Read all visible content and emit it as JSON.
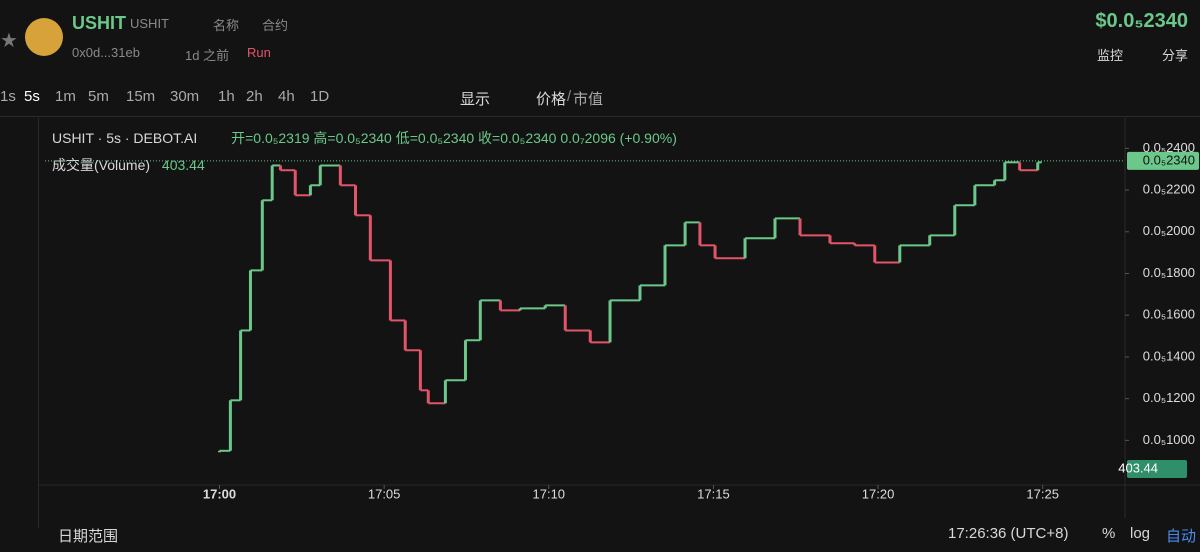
{
  "header": {
    "name": "USHIT",
    "symbol": "USHIT",
    "search_name": "名称",
    "search_contract": "合约",
    "address": "0x0d...31eb",
    "age": "1d 之前",
    "platform": "Run",
    "price": "$0.0₅2340",
    "watch": "监控",
    "share": "分享"
  },
  "toolbar": {
    "intervals": [
      "1s",
      "5s",
      "1m",
      "5m",
      "15m",
      "30m",
      "1h",
      "2h",
      "4h",
      "1D"
    ],
    "display": "显示",
    "price": "价格",
    "slash": "/",
    "market_cap": "市值"
  },
  "legend": {
    "title": "USHIT · 5s · DEBOT.AI",
    "open": "开=0.0₅2319",
    "high": "高=0.0₅2340",
    "low": "低=0.0₅2340",
    "close": "收=0.0₅2340",
    "change": "0.0₇2096 (+0.90%)",
    "volume_label": "成交量(Volume)",
    "volume_value": "403.44"
  },
  "footer": {
    "date_range": "日期范围",
    "time": "17:26:36 (UTC+8)",
    "percent": "%",
    "log": "log",
    "auto": "自动"
  },
  "chart_data": {
    "type": "candle-steps",
    "x": [
      1020,
      1020.33,
      1020.64,
      1020.94,
      1021.3,
      1021.6,
      1021.85,
      1022.3,
      1022.76,
      1023.06,
      1023.67,
      1024.13,
      1024.58,
      1025.19,
      1025.64,
      1026.1,
      1026.34,
      1026.86,
      1027.47,
      1027.92,
      1028.53,
      1029.13,
      1029.89,
      1030.5,
      1031.26,
      1031.86,
      1032.77,
      1033.53,
      1034.14,
      1034.59,
      1035.05,
      1035.96,
      1036.87,
      1037.63,
      1038.54,
      1039.29,
      1039.9,
      1040.66,
      1041.57,
      1042.33,
      1042.94,
      1043.54,
      1043.85,
      1044.3,
      1044.85
    ],
    "values": [
      9.5e-07,
      1.192e-06,
      1.527e-06,
      1.815e-06,
      2.151e-06,
      2.318e-06,
      2.295e-06,
      2.175e-06,
      2.223e-06,
      2.318e-06,
      2.223e-06,
      2.079e-06,
      1.863e-06,
      1.575e-06,
      1.432e-06,
      1.24e-06,
      1.178e-06,
      1.288e-06,
      1.48e-06,
      1.671e-06,
      1.623e-06,
      1.633e-06,
      1.647e-06,
      1.527e-06,
      1.47e-06,
      1.671e-06,
      1.743e-06,
      1.935e-06,
      2.045e-06,
      1.935e-06,
      1.873e-06,
      1.969e-06,
      2.064e-06,
      1.983e-06,
      1.945e-06,
      1.935e-06,
      1.853e-06,
      1.935e-06,
      1.983e-06,
      2.127e-06,
      2.223e-06,
      2.247e-06,
      2.333e-06,
      2.295e-06,
      2.333e-06
    ],
    "up_color": "#6cc78a",
    "down_color": "#e2546a",
    "xlim": [
      1014.7,
      1047.5
    ],
    "xticks": [
      {
        "value": 1020,
        "label": "17:00"
      },
      {
        "value": 1025,
        "label": "17:05"
      },
      {
        "value": 1030,
        "label": "17:10"
      },
      {
        "value": 1035,
        "label": "17:15"
      },
      {
        "value": 1040,
        "label": "17:20"
      },
      {
        "value": 1045,
        "label": "17:25"
      }
    ],
    "ylim": [
      8.1e-07,
      2.44e-06
    ],
    "yticks": [
      {
        "value": 1e-06,
        "label": "0.0₅1000"
      },
      {
        "value": 1.2e-06,
        "label": "0.0₅1200"
      },
      {
        "value": 1.4e-06,
        "label": "0.0₅1400"
      },
      {
        "value": 1.6e-06,
        "label": "0.0₅1600"
      },
      {
        "value": 1.8e-06,
        "label": "0.0₅1800"
      },
      {
        "value": 2e-06,
        "label": "0.0₅2000"
      },
      {
        "value": 2.2e-06,
        "label": "0.0₅2200"
      },
      {
        "value": 2.4e-06,
        "label": "0.0₅2400"
      }
    ],
    "last_price": {
      "value": 2.34e-06,
      "label": "0.0₅2340"
    },
    "volume_tag": "403.44"
  }
}
